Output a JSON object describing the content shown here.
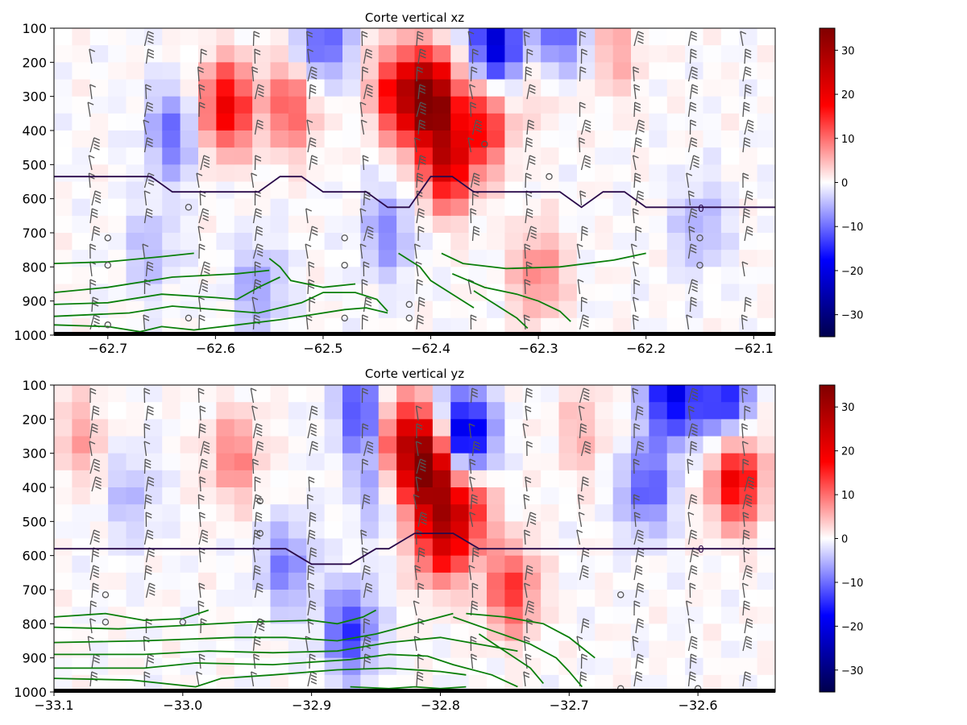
{
  "chart_data": [
    {
      "type": "heatmap",
      "title": "Corte vertical xz",
      "xlim": [
        -62.75,
        -62.08
      ],
      "ylim": [
        1000,
        100
      ],
      "x_ticks": [
        -62.7,
        -62.6,
        -62.5,
        -62.4,
        -62.3,
        -62.2,
        -62.1
      ],
      "x_tick_labels": [
        "−62.7",
        "−62.6",
        "−62.5",
        "−62.4",
        "−62.3",
        "−62.2",
        "−62.1"
      ],
      "y_ticks": [
        100,
        200,
        300,
        400,
        500,
        600,
        700,
        800,
        900,
        1000
      ],
      "y_tick_labels": [
        "100",
        "200",
        "300",
        "400",
        "500",
        "600",
        "700",
        "800",
        "900",
        "1000"
      ],
      "colormap": "seismic",
      "vmin": -35,
      "vmax": 35,
      "colorbar_ticks": [
        -30,
        -20,
        -10,
        0,
        10,
        20,
        30
      ],
      "colorbar_tick_labels": [
        "−30",
        "−20",
        "−10",
        "0",
        "10",
        "20",
        "30"
      ],
      "freezing_contour_label": "0",
      "freezing_contour": {
        "x": [
          -62.75,
          -62.66,
          -62.64,
          -62.56,
          -62.54,
          -62.52,
          -62.5,
          -62.46,
          -62.44,
          -62.42,
          -62.4,
          -62.38,
          -62.36,
          -62.28,
          -62.26,
          -62.24,
          -62.22,
          -62.2,
          -62.15,
          -62.08
        ],
        "p": [
          535,
          535,
          580,
          580,
          535,
          535,
          580,
          580,
          625,
          625,
          535,
          535,
          580,
          580,
          625,
          580,
          580,
          625,
          625,
          625
        ]
      },
      "cores": [
        {
          "x": -62.59,
          "p": 330,
          "value": 20
        },
        {
          "x": -62.53,
          "p": 330,
          "value": 12
        },
        {
          "x": -62.4,
          "p": 310,
          "value": 34
        },
        {
          "x": -62.385,
          "p": 500,
          "value": 22
        },
        {
          "x": -62.35,
          "p": 380,
          "value": 16
        },
        {
          "x": -62.43,
          "p": 290,
          "value": 18
        },
        {
          "x": -62.3,
          "p": 820,
          "value": 9
        },
        {
          "x": -62.29,
          "p": 230,
          "value": 6
        },
        {
          "x": -62.23,
          "p": 170,
          "value": 6
        },
        {
          "x": -62.34,
          "p": 140,
          "value": -22
        },
        {
          "x": -62.28,
          "p": 140,
          "value": -14
        },
        {
          "x": -62.5,
          "p": 140,
          "value": -12
        },
        {
          "x": -62.64,
          "p": 410,
          "value": -10
        },
        {
          "x": -62.44,
          "p": 700,
          "value": -8
        },
        {
          "x": -62.56,
          "p": 860,
          "value": -7
        },
        {
          "x": -62.15,
          "p": 680,
          "value": -6
        },
        {
          "x": -62.66,
          "p": 750,
          "value": -5
        }
      ],
      "green_contours": [
        [
          [
            -62.75,
            790
          ],
          [
            -62.7,
            785
          ],
          [
            -62.65,
            770
          ],
          [
            -62.62,
            760
          ]
        ],
        [
          [
            -62.75,
            875
          ],
          [
            -62.7,
            860
          ],
          [
            -62.64,
            830
          ],
          [
            -62.58,
            820
          ],
          [
            -62.55,
            810
          ]
        ],
        [
          [
            -62.75,
            910
          ],
          [
            -62.7,
            905
          ],
          [
            -62.65,
            880
          ],
          [
            -62.6,
            890
          ],
          [
            -62.58,
            895
          ],
          [
            -62.56,
            860
          ],
          [
            -62.54,
            830
          ]
        ],
        [
          [
            -62.75,
            945
          ],
          [
            -62.68,
            935
          ],
          [
            -62.64,
            915
          ],
          [
            -62.6,
            925
          ],
          [
            -62.56,
            935
          ],
          [
            -62.52,
            905
          ],
          [
            -62.5,
            875
          ],
          [
            -62.47,
            875
          ],
          [
            -62.45,
            895
          ],
          [
            -62.44,
            930
          ]
        ],
        [
          [
            -62.75,
            970
          ],
          [
            -62.7,
            975
          ],
          [
            -62.67,
            990
          ],
          [
            -62.65,
            975
          ],
          [
            -62.62,
            985
          ],
          [
            -62.58,
            970
          ],
          [
            -62.54,
            955
          ],
          [
            -62.51,
            940
          ],
          [
            -62.48,
            925
          ],
          [
            -62.46,
            920
          ],
          [
            -62.44,
            935
          ]
        ],
        [
          [
            -62.55,
            775
          ],
          [
            -62.54,
            800
          ],
          [
            -62.53,
            840
          ],
          [
            -62.5,
            860
          ],
          [
            -62.47,
            850
          ]
        ],
        [
          [
            -62.43,
            760
          ],
          [
            -62.41,
            800
          ],
          [
            -62.4,
            840
          ],
          [
            -62.38,
            880
          ],
          [
            -62.36,
            920
          ]
        ],
        [
          [
            -62.39,
            760
          ],
          [
            -62.37,
            790
          ],
          [
            -62.33,
            805
          ],
          [
            -62.28,
            800
          ],
          [
            -62.23,
            780
          ],
          [
            -62.2,
            760
          ]
        ],
        [
          [
            -62.38,
            820
          ],
          [
            -62.35,
            860
          ],
          [
            -62.32,
            880
          ],
          [
            -62.3,
            900
          ],
          [
            -62.28,
            930
          ],
          [
            -62.27,
            960
          ]
        ],
        [
          [
            -62.36,
            870
          ],
          [
            -62.34,
            910
          ],
          [
            -62.32,
            950
          ],
          [
            -62.31,
            980
          ]
        ]
      ],
      "calm_circles": [
        [
          -62.7,
          715
        ],
        [
          -62.7,
          795
        ],
        [
          -62.7,
          970
        ],
        [
          -62.625,
          625
        ],
        [
          -62.625,
          950
        ],
        [
          -62.48,
          715
        ],
        [
          -62.48,
          795
        ],
        [
          -62.48,
          950
        ],
        [
          -62.42,
          910
        ],
        [
          -62.42,
          950
        ],
        [
          -62.35,
          440
        ],
        [
          -62.29,
          535
        ],
        [
          -62.15,
          715
        ],
        [
          -62.15,
          795
        ]
      ]
    },
    {
      "type": "heatmap",
      "title": "Corte vertical yz",
      "xlim": [
        -33.1,
        -32.54
      ],
      "ylim": [
        1000,
        100
      ],
      "x_ticks": [
        -33.1,
        -33.0,
        -32.9,
        -32.8,
        -32.7,
        -32.6
      ],
      "x_tick_labels": [
        "−33.1",
        "−33.0",
        "−32.9",
        "−32.8",
        "−32.7",
        "−32.6"
      ],
      "y_ticks": [
        100,
        200,
        300,
        400,
        500,
        600,
        700,
        800,
        900,
        1000
      ],
      "y_tick_labels": [
        "100",
        "200",
        "300",
        "400",
        "500",
        "600",
        "700",
        "800",
        "900",
        "1000"
      ],
      "colormap": "seismic",
      "vmin": -35,
      "vmax": 35,
      "colorbar_ticks": [
        -30,
        -20,
        -10,
        0,
        10,
        20,
        30
      ],
      "colorbar_tick_labels": [
        "−30",
        "−20",
        "−10",
        "0",
        "10",
        "20",
        "30"
      ],
      "freezing_contour_label": "0",
      "freezing_contour": {
        "x": [
          -33.1,
          -32.92,
          -32.9,
          -32.87,
          -32.85,
          -32.84,
          -32.82,
          -32.79,
          -32.77,
          -32.6,
          -32.54
        ],
        "p": [
          580,
          580,
          625,
          625,
          580,
          580,
          535,
          535,
          580,
          580,
          580
        ]
      },
      "cores": [
        {
          "x": -32.81,
          "p": 350,
          "value": 34
        },
        {
          "x": -32.8,
          "p": 550,
          "value": 20
        },
        {
          "x": -32.83,
          "p": 250,
          "value": 18
        },
        {
          "x": -32.78,
          "p": 460,
          "value": 16
        },
        {
          "x": -32.745,
          "p": 700,
          "value": 14
        },
        {
          "x": -32.57,
          "p": 380,
          "value": 20
        },
        {
          "x": -32.96,
          "p": 310,
          "value": 9
        },
        {
          "x": -33.08,
          "p": 260,
          "value": 6
        },
        {
          "x": -32.69,
          "p": 240,
          "value": 5
        },
        {
          "x": -32.62,
          "p": 130,
          "value": -20
        },
        {
          "x": -32.58,
          "p": 140,
          "value": -16
        },
        {
          "x": -32.78,
          "p": 250,
          "value": -24
        },
        {
          "x": -32.86,
          "p": 180,
          "value": -14
        },
        {
          "x": -32.87,
          "p": 820,
          "value": -14
        },
        {
          "x": -32.92,
          "p": 630,
          "value": -9
        },
        {
          "x": -32.64,
          "p": 400,
          "value": -12
        },
        {
          "x": -32.85,
          "p": 400,
          "value": -6
        },
        {
          "x": -33.04,
          "p": 420,
          "value": -5
        }
      ],
      "green_contours": [
        [
          [
            -33.1,
            780
          ],
          [
            -33.06,
            770
          ],
          [
            -33.03,
            790
          ],
          [
            -33.0,
            785
          ],
          [
            -32.98,
            760
          ]
        ],
        [
          [
            -33.1,
            810
          ],
          [
            -33.05,
            815
          ],
          [
            -33.0,
            805
          ],
          [
            -32.95,
            795
          ],
          [
            -32.9,
            790
          ],
          [
            -32.88,
            800
          ],
          [
            -32.86,
            780
          ],
          [
            -32.85,
            760
          ]
        ],
        [
          [
            -33.1,
            855
          ],
          [
            -33.03,
            850
          ],
          [
            -32.96,
            840
          ],
          [
            -32.92,
            840
          ],
          [
            -32.88,
            850
          ],
          [
            -32.85,
            830
          ],
          [
            -32.82,
            800
          ],
          [
            -32.79,
            770
          ]
        ],
        [
          [
            -33.1,
            890
          ],
          [
            -33.03,
            890
          ],
          [
            -32.98,
            880
          ],
          [
            -32.93,
            885
          ],
          [
            -32.88,
            880
          ],
          [
            -32.84,
            855
          ],
          [
            -32.8,
            840
          ],
          [
            -32.77,
            860
          ],
          [
            -32.74,
            880
          ]
        ],
        [
          [
            -33.1,
            930
          ],
          [
            -33.03,
            930
          ],
          [
            -32.99,
            915
          ],
          [
            -32.93,
            920
          ],
          [
            -32.87,
            905
          ],
          [
            -32.84,
            890
          ],
          [
            -32.81,
            895
          ],
          [
            -32.79,
            920
          ],
          [
            -32.76,
            950
          ],
          [
            -32.74,
            985
          ]
        ],
        [
          [
            -33.1,
            960
          ],
          [
            -33.04,
            965
          ],
          [
            -32.99,
            985
          ],
          [
            -32.97,
            960
          ],
          [
            -32.93,
            950
          ],
          [
            -32.88,
            935
          ],
          [
            -32.84,
            930
          ],
          [
            -32.8,
            940
          ],
          [
            -32.78,
            950
          ]
        ],
        [
          [
            -32.87,
            985
          ],
          [
            -32.84,
            990
          ],
          [
            -32.82,
            985
          ],
          [
            -32.8,
            990
          ],
          [
            -32.78,
            985
          ]
        ],
        [
          [
            -32.78,
            770
          ],
          [
            -32.75,
            780
          ],
          [
            -32.72,
            800
          ],
          [
            -32.7,
            840
          ],
          [
            -32.69,
            870
          ],
          [
            -32.68,
            900
          ]
        ],
        [
          [
            -32.79,
            780
          ],
          [
            -32.76,
            820
          ],
          [
            -32.73,
            860
          ],
          [
            -32.71,
            900
          ],
          [
            -32.7,
            940
          ],
          [
            -32.69,
            985
          ]
        ],
        [
          [
            -32.77,
            830
          ],
          [
            -32.75,
            880
          ],
          [
            -32.73,
            930
          ],
          [
            -32.72,
            975
          ]
        ]
      ],
      "calm_circles": [
        [
          -33.06,
          715
        ],
        [
          -33.06,
          795
        ],
        [
          -33.0,
          795
        ],
        [
          -32.94,
          440
        ],
        [
          -32.94,
          535
        ],
        [
          -32.94,
          795
        ],
        [
          -32.66,
          715
        ],
        [
          -32.66,
          990
        ],
        [
          -32.6,
          990
        ]
      ]
    }
  ]
}
